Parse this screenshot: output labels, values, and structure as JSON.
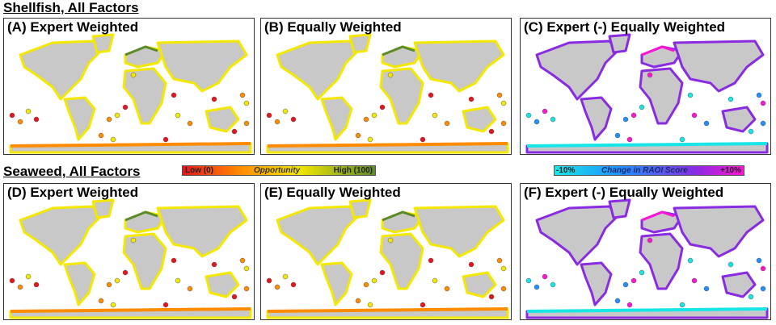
{
  "sections": [
    {
      "title": "Shellfish, All Factors",
      "panels": [
        {
          "label": "(A) Expert Weighted",
          "kind": "opportunity"
        },
        {
          "label": "(B) Equally Weighted",
          "kind": "opportunity"
        },
        {
          "label": "(C) Expert (-) Equally Weighted",
          "kind": "change"
        }
      ]
    },
    {
      "title": "Seaweed, All Factors",
      "panels": [
        {
          "label": "(D) Expert Weighted",
          "kind": "opportunity"
        },
        {
          "label": "(E) Equally Weighted",
          "kind": "opportunity"
        },
        {
          "label": "(F) Expert (-) Equally Weighted",
          "kind": "change"
        }
      ]
    }
  ],
  "legend_opportunity": {
    "low": "Low (0)",
    "title": "Opportunity",
    "high": "High (100)",
    "colors": [
      "#e8141a",
      "#ff8c00",
      "#f5e800",
      "#5a8a2e"
    ]
  },
  "legend_change": {
    "low": "-10%",
    "title": "Change in RAOI Score",
    "high": "+10%",
    "colors": [
      "#18e6e6",
      "#1e90ff",
      "#8a2be2",
      "#ff14d4"
    ]
  },
  "land_color": "#c8c8c8"
}
